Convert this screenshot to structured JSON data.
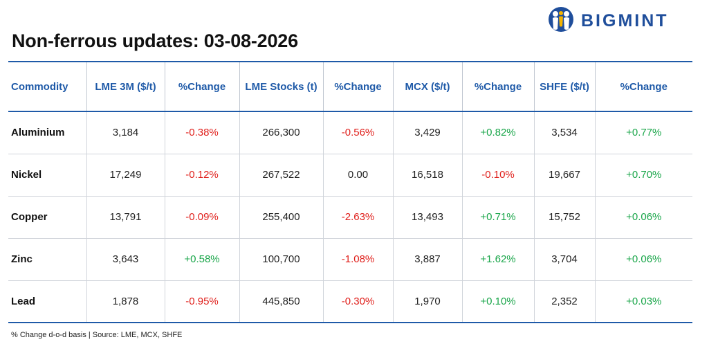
{
  "title": "Non-ferrous updates: 03-08-2026",
  "logo": {
    "text": "BIGMINT",
    "icon": "bigmint-people-icon"
  },
  "colors": {
    "header": "#1f5aa8",
    "negative": "#e0201c",
    "positive": "#1aa64a",
    "brand": "#1f4e9b"
  },
  "table": {
    "headers": [
      "Commodity",
      "LME 3M ($/t)",
      "%Change",
      "LME Stocks (t)",
      "%Change",
      "MCX ($/t)",
      "%Change",
      "SHFE ($/t)",
      "%Change"
    ],
    "rows": [
      {
        "commodity": "Aluminium",
        "lme3m": "3,184",
        "lme3m_chg": "-0.38%",
        "lme_stocks": "266,300",
        "lme_stocks_chg": "-0.56%",
        "mcx": "3,429",
        "mcx_chg": "+0.82%",
        "shfe": "3,534",
        "shfe_chg": "+0.77%"
      },
      {
        "commodity": "Nickel",
        "lme3m": "17,249",
        "lme3m_chg": "-0.12%",
        "lme_stocks": "267,522",
        "lme_stocks_chg": "0.00",
        "mcx": "16,518",
        "mcx_chg": "-0.10%",
        "shfe": "19,667",
        "shfe_chg": "+0.70%"
      },
      {
        "commodity": "Copper",
        "lme3m": "13,791",
        "lme3m_chg": "-0.09%",
        "lme_stocks": "255,400",
        "lme_stocks_chg": "-2.63%",
        "mcx": "13,493",
        "mcx_chg": "+0.71%",
        "shfe": "15,752",
        "shfe_chg": "+0.06%"
      },
      {
        "commodity": "Zinc",
        "lme3m": "3,643",
        "lme3m_chg": "+0.58%",
        "lme_stocks": "100,700",
        "lme_stocks_chg": "-1.08%",
        "mcx": "3,887",
        "mcx_chg": "+1.62%",
        "shfe": "3,704",
        "shfe_chg": "+0.06%"
      },
      {
        "commodity": "Lead",
        "lme3m": "1,878",
        "lme3m_chg": "-0.95%",
        "lme_stocks": "445,850",
        "lme_stocks_chg": "-0.30%",
        "mcx": "1,970",
        "mcx_chg": "+0.10%",
        "shfe": "2,352",
        "shfe_chg": "+0.03%"
      }
    ]
  },
  "footnote": "% Change d-o-d basis | Source: LME, MCX, SHFE"
}
